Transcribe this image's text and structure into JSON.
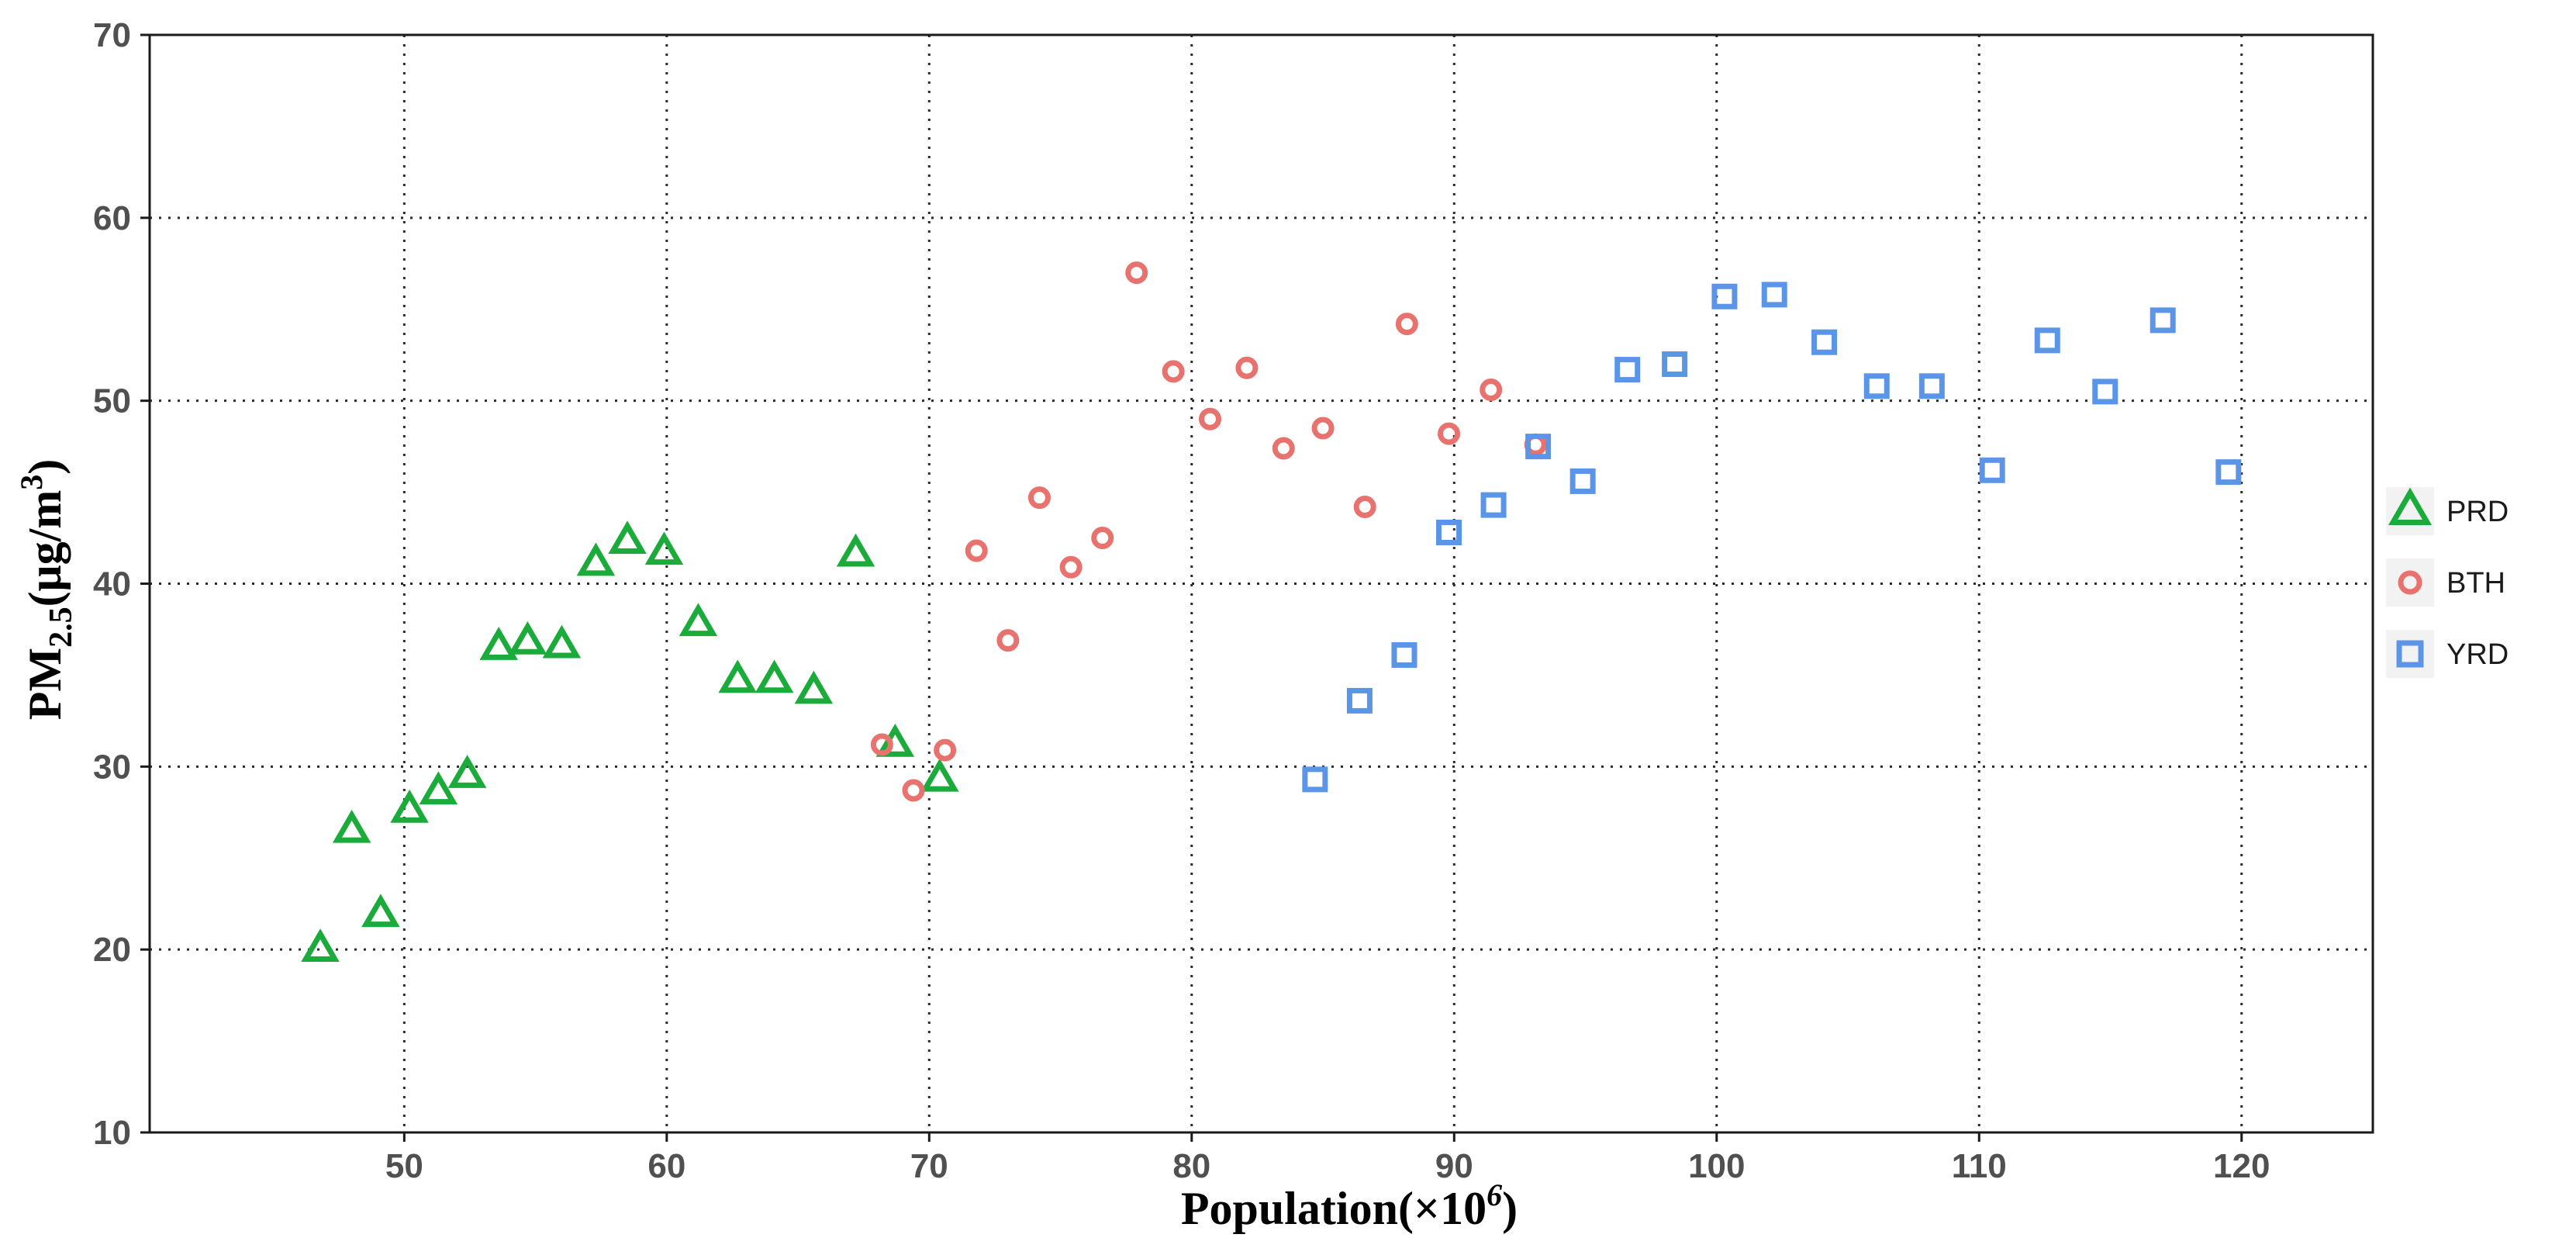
{
  "chart_data": {
    "type": "scatter",
    "title": "",
    "xlabel": "Population(×10",
    "xlabel_sup": "6",
    "xlabel_close": ")",
    "ylabel": "PM",
    "ylabel_sub": "2.5",
    "ylabel_unit": "(μg/m",
    "ylabel_sup": "3",
    "ylabel_close": ")",
    "xlim": [
      40.3,
      125
    ],
    "ylim": [
      10,
      70
    ],
    "xticks": [
      50,
      60,
      70,
      80,
      90,
      100,
      110,
      120
    ],
    "yticks": [
      10,
      20,
      30,
      40,
      50,
      60,
      70
    ],
    "grid": true,
    "legend_position": "right",
    "colors": {
      "PRD": "#1aab3a",
      "BTH": "#e8736e",
      "YRD": "#5b95e8"
    },
    "series": [
      {
        "name": "PRD",
        "marker": "triangle",
        "points": [
          [
            46.8,
            20.0
          ],
          [
            48.0,
            26.5
          ],
          [
            49.1,
            21.9
          ],
          [
            50.2,
            27.6
          ],
          [
            51.3,
            28.6
          ],
          [
            52.4,
            29.5
          ],
          [
            53.6,
            36.5
          ],
          [
            54.7,
            36.8
          ],
          [
            56.0,
            36.6
          ],
          [
            57.3,
            41.1
          ],
          [
            58.5,
            42.3
          ],
          [
            59.9,
            41.7
          ],
          [
            61.2,
            37.8
          ],
          [
            62.7,
            34.7
          ],
          [
            64.1,
            34.7
          ],
          [
            65.6,
            34.1
          ],
          [
            67.2,
            41.6
          ],
          [
            68.7,
            31.2
          ],
          [
            70.4,
            29.3
          ]
        ]
      },
      {
        "name": "BTH",
        "marker": "circle",
        "points": [
          [
            68.2,
            31.2
          ],
          [
            69.4,
            28.7
          ],
          [
            70.6,
            30.9
          ],
          [
            71.8,
            41.8
          ],
          [
            73.0,
            36.9
          ],
          [
            74.2,
            44.7
          ],
          [
            75.4,
            40.9
          ],
          [
            76.6,
            42.5
          ],
          [
            77.9,
            57.0
          ],
          [
            79.3,
            51.6
          ],
          [
            80.7,
            49.0
          ],
          [
            82.1,
            51.8
          ],
          [
            83.5,
            47.4
          ],
          [
            85.0,
            48.5
          ],
          [
            86.6,
            44.2
          ],
          [
            88.2,
            54.2
          ],
          [
            89.8,
            48.2
          ],
          [
            91.4,
            50.6
          ],
          [
            93.1,
            47.6
          ]
        ]
      },
      {
        "name": "YRD",
        "marker": "square",
        "points": [
          [
            84.7,
            29.3
          ],
          [
            86.4,
            33.6
          ],
          [
            88.1,
            36.1
          ],
          [
            89.8,
            42.8
          ],
          [
            91.5,
            44.3
          ],
          [
            93.2,
            47.5
          ],
          [
            94.9,
            45.6
          ],
          [
            96.6,
            51.7
          ],
          [
            98.4,
            52.0
          ],
          [
            100.3,
            55.7
          ],
          [
            102.2,
            55.8
          ],
          [
            104.1,
            53.2
          ],
          [
            106.1,
            50.8
          ],
          [
            108.2,
            50.8
          ],
          [
            110.5,
            46.2
          ],
          [
            112.6,
            53.3
          ],
          [
            114.8,
            50.5
          ],
          [
            117.0,
            54.4
          ],
          [
            119.5,
            46.1
          ]
        ]
      }
    ]
  }
}
